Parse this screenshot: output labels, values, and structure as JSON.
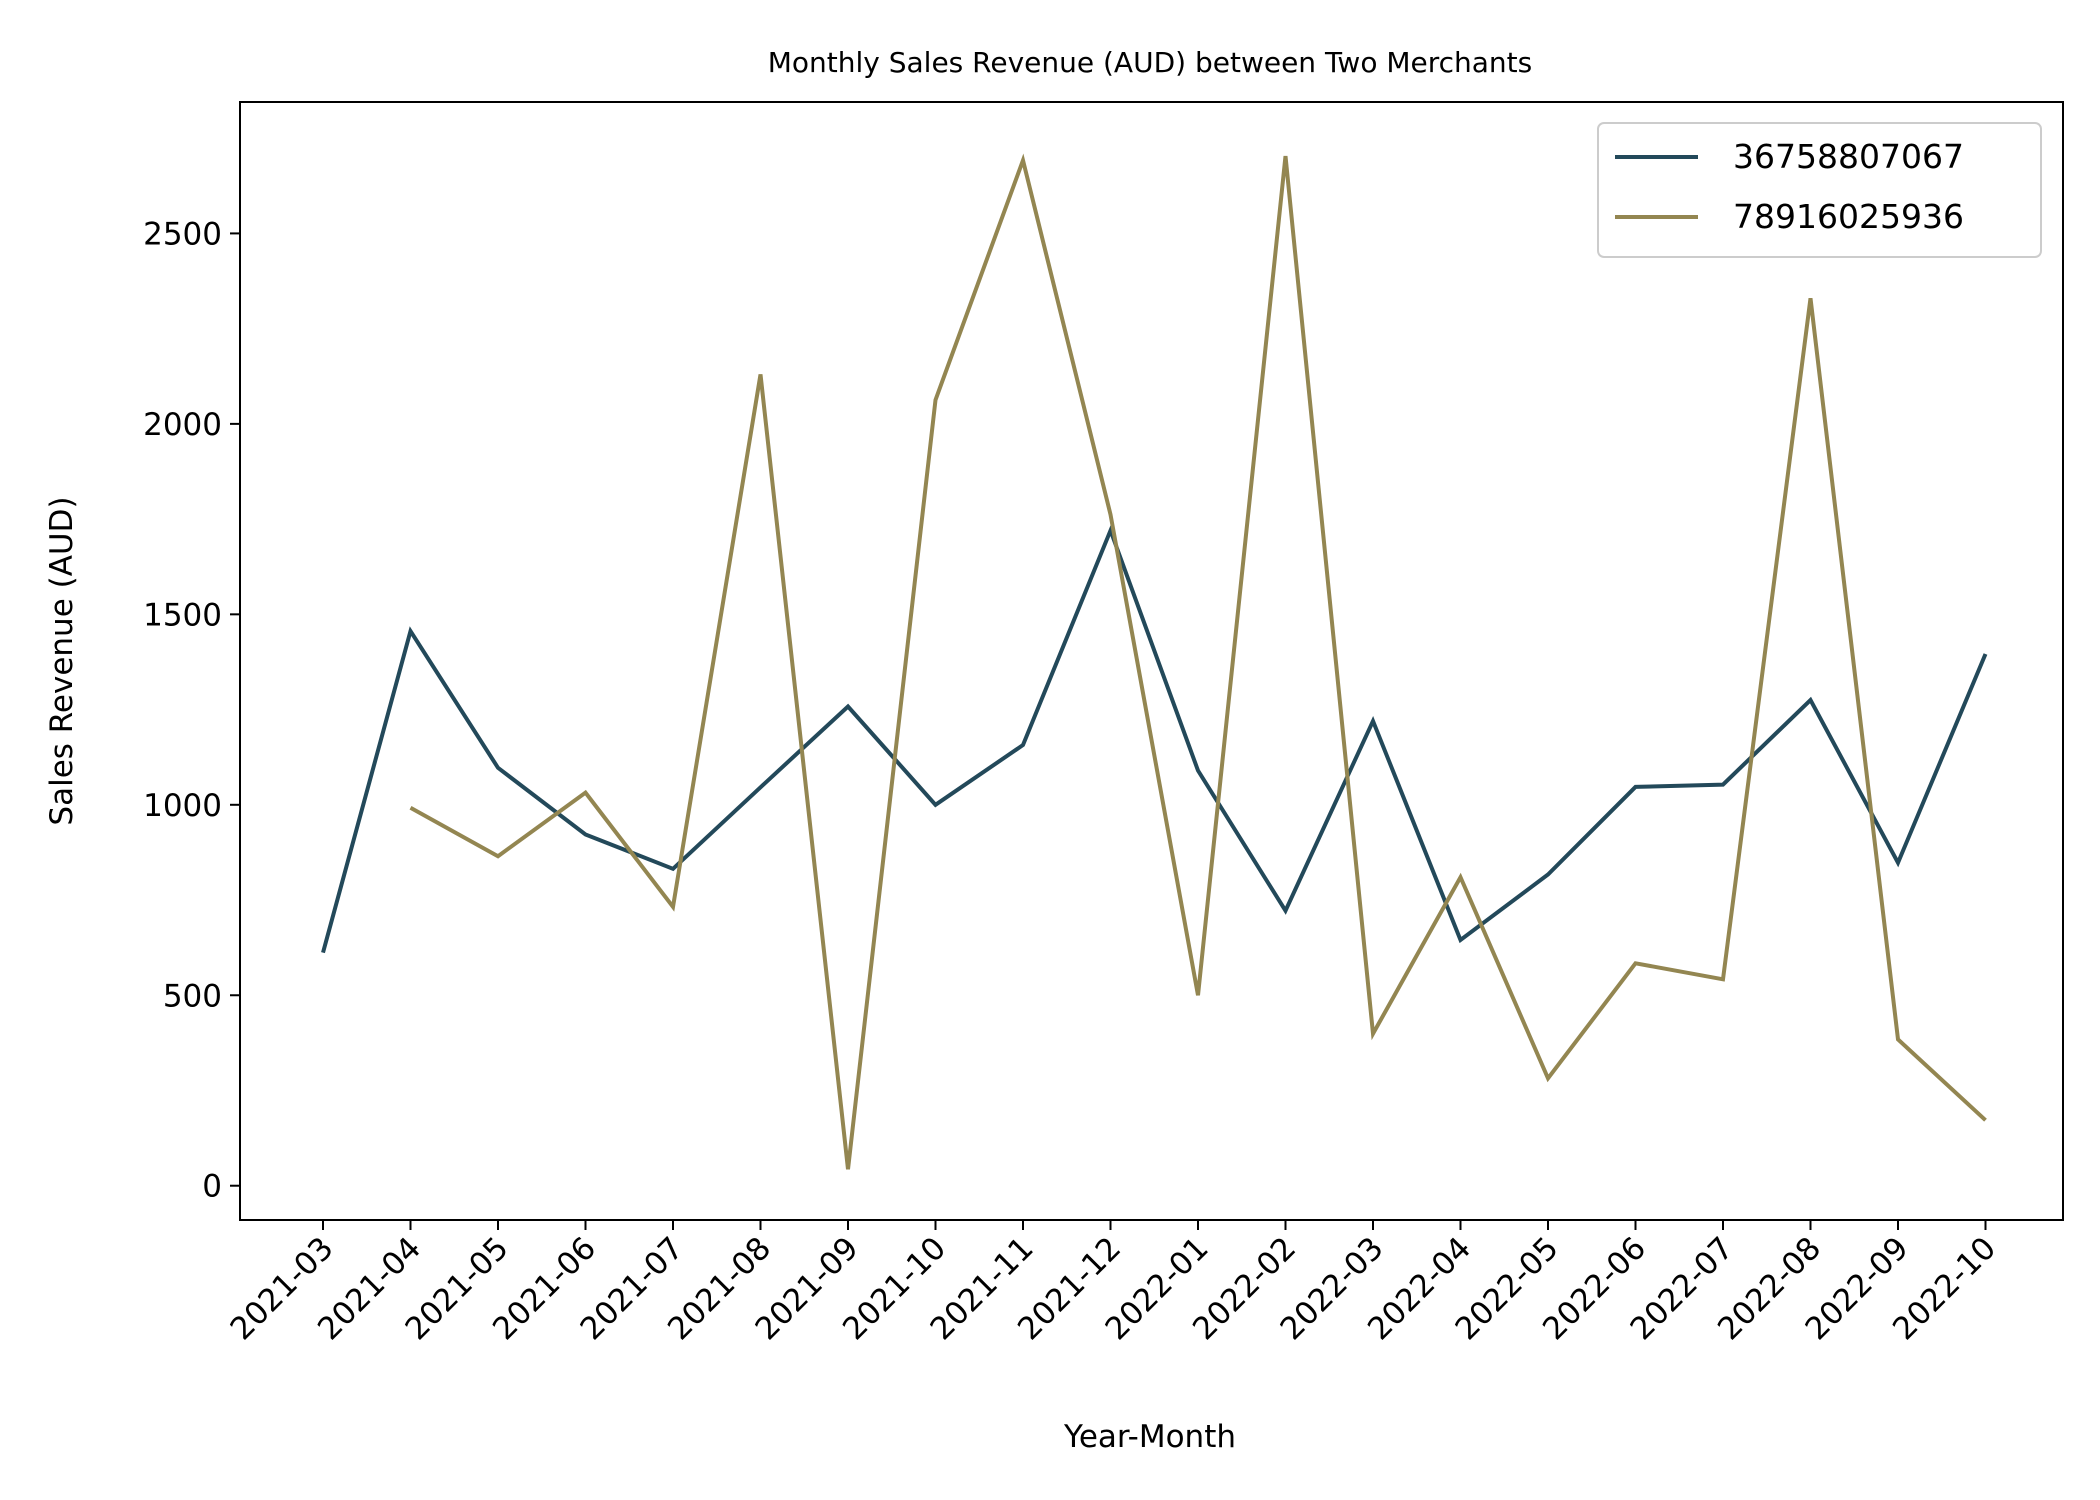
{
  "chart_data": {
    "type": "line",
    "title": "Monthly Sales Revenue (AUD) between Two Merchants",
    "xlabel": "Year-Month",
    "ylabel": "Sales Revenue (AUD)",
    "categories": [
      "2021-03",
      "2021-04",
      "2021-05",
      "2021-06",
      "2021-07",
      "2021-08",
      "2021-09",
      "2021-10",
      "2021-11",
      "2021-12",
      "2022-01",
      "2022-02",
      "2022-03",
      "2022-04",
      "2022-05",
      "2022-06",
      "2022-07",
      "2022-08",
      "2022-09",
      "2022-10"
    ],
    "yticks": [
      0,
      500,
      1000,
      1500,
      2000,
      2500
    ],
    "ylim": [
      -90,
      2845
    ],
    "grid": false,
    "legend_position": "top-right",
    "series": [
      {
        "name": "36758807067",
        "color": "#23495a",
        "values": [
          612,
          1456,
          1097,
          922,
          832,
          1046,
          1258,
          1000,
          1157,
          1720,
          1090,
          722,
          1220,
          645,
          817,
          1047,
          1053,
          1275,
          848,
          1396
        ]
      },
      {
        "name": "78916025936",
        "color": "#938651",
        "values": [
          null,
          992,
          865,
          1032,
          732,
          2130,
          43,
          2063,
          2692,
          1762,
          500,
          2703,
          399,
          810,
          282,
          584,
          542,
          2330,
          384,
          172
        ]
      }
    ]
  }
}
